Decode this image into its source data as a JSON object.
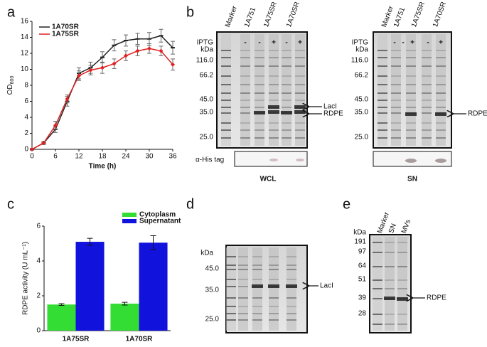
{
  "chart_data": [
    {
      "type": "line",
      "panel": "a",
      "x": [
        0,
        3,
        6,
        9,
        12,
        15,
        18,
        21,
        24,
        27,
        30,
        33,
        36
      ],
      "xlim": [
        0,
        36
      ],
      "xticks": [
        0,
        6,
        12,
        18,
        24,
        30,
        36
      ],
      "ylim": [
        0,
        16
      ],
      "yticks": [
        0,
        2,
        4,
        6,
        8,
        10,
        12,
        14,
        16
      ],
      "x_label": "Time (h)",
      "y_label": "OD",
      "y_label_sub": "600",
      "series": [
        {
          "name": "1A70SR",
          "color": "#222222",
          "values": [
            0,
            0.8,
            2.5,
            6,
            9.5,
            10.2,
            11.5,
            13,
            13.6,
            13.8,
            13.8,
            14.2,
            12.7
          ],
          "errors": [
            0.1,
            0.2,
            0.4,
            0.6,
            0.7,
            0.7,
            0.7,
            0.7,
            0.7,
            0.7,
            0.8,
            0.8,
            0.8
          ]
        },
        {
          "name": "1A75SR",
          "color": "#e02020",
          "values": [
            0,
            0.8,
            3,
            6.3,
            9.2,
            9.9,
            10.2,
            10.7,
            11.7,
            12.3,
            12.6,
            12.3,
            10.6
          ],
          "errors": [
            0.1,
            0.2,
            0.5,
            0.5,
            0.6,
            0.6,
            0.7,
            0.6,
            0.6,
            0.6,
            0.6,
            0.6,
            0.7
          ]
        }
      ]
    },
    {
      "type": "bar",
      "panel": "c",
      "categories": [
        "1A75SR",
        "1A70SR"
      ],
      "ylim": [
        0,
        6
      ],
      "yticks": [
        0,
        2,
        4,
        6
      ],
      "y_label": "RDPE activity (U mL⁻¹)",
      "series": [
        {
          "name": "Cytoplasm",
          "color": "#33dd33",
          "values": [
            1.5,
            1.55
          ],
          "errors": [
            0.05,
            0.08
          ]
        },
        {
          "name": "Supernatant",
          "color": "#1212dd",
          "values": [
            5.1,
            5.05
          ],
          "errors": [
            0.2,
            0.4
          ]
        }
      ]
    }
  ],
  "gel_b": {
    "panel": "b",
    "iptg": "IPTG",
    "kda": "kDa",
    "wcl": {
      "lanes": [
        "Marker",
        "1A751",
        "1A75SR",
        "1A70SR"
      ],
      "signs": [
        "-",
        "-",
        "+",
        "-",
        "+"
      ],
      "markers": [
        "116.0",
        "66.2",
        "45.0",
        "35.0",
        "25.0"
      ],
      "bands": [
        "LacI",
        "RDPE"
      ],
      "blot": "α-His tag",
      "caption": "WCL"
    },
    "sn": {
      "lanes": [
        "Marker",
        "1A751",
        "1A75SR",
        "1A70SR"
      ],
      "signs": [
        "-",
        "-",
        "+",
        "-",
        "+"
      ],
      "markers": [
        "116.0",
        "66.2",
        "45.0",
        "35.0",
        "25.0"
      ],
      "bands": [
        "RDPE"
      ],
      "caption": "SN"
    }
  },
  "gel_d": {
    "panel": "d",
    "kda": "kDa",
    "markers": [
      "45.0",
      "35.0",
      "25.0"
    ],
    "bands": [
      "LacI"
    ]
  },
  "gel_e": {
    "panel": "e",
    "kda": "kDa",
    "lanes": [
      "Marker",
      "SN",
      "MVs"
    ],
    "markers": [
      "191",
      "97",
      "64",
      "51",
      "39",
      "28"
    ],
    "bands": [
      "RDPE"
    ]
  }
}
